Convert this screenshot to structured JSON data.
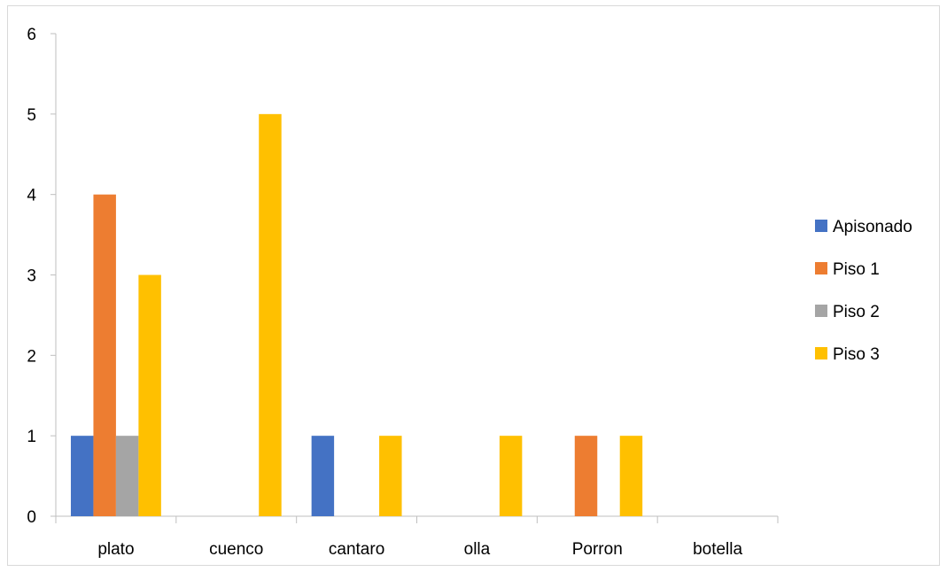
{
  "chart_data": {
    "type": "bar",
    "title": "",
    "xlabel": "",
    "ylabel": "",
    "categories": [
      "plato",
      "cuenco",
      "cantaro",
      "olla",
      "Porron",
      "botella"
    ],
    "series": [
      {
        "name": "Apisonado",
        "color": "#4472C4",
        "values": [
          1,
          0,
          1,
          0,
          0,
          0
        ]
      },
      {
        "name": "Piso 1",
        "color": "#ED7D31",
        "values": [
          4,
          0,
          0,
          0,
          1,
          0
        ]
      },
      {
        "name": "Piso 2",
        "color": "#A5A5A5",
        "values": [
          1,
          0,
          0,
          0,
          0,
          0
        ]
      },
      {
        "name": "Piso 3",
        "color": "#FFC000",
        "values": [
          3,
          5,
          1,
          1,
          1,
          0
        ]
      }
    ],
    "yticks": [
      "0",
      "1",
      "2",
      "3",
      "4",
      "5",
      "6"
    ],
    "ylim": [
      0,
      6
    ],
    "grid": false,
    "legend": "right"
  }
}
